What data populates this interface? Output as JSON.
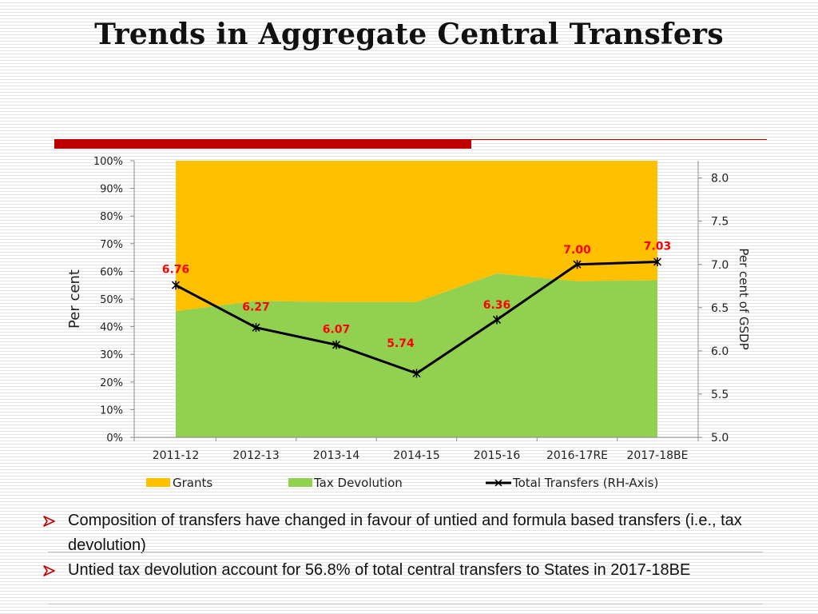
{
  "slide": {
    "title": "Trends in Aggregate Central Transfers",
    "accent_color": "#c00000",
    "bullets": [
      "Composition of transfers have changed in favour of untied and formula based transfers (i.e., tax devolution)",
      "Untied tax devolution account for 56.8% of total central transfers to States in 2017-18BE"
    ],
    "bullet_icon": "arrow-bullet-icon"
  },
  "chart_data": {
    "type": "area",
    "title": "",
    "ylabel": "Per cent",
    "y2label": "Per cent of GSDP",
    "categories": [
      "2011-12",
      "2012-13",
      "2013-14",
      "2014-15",
      "2015-16",
      "2016-17RE",
      "2017-18BE"
    ],
    "ylim": [
      0,
      100
    ],
    "yticks": [
      "0%",
      "10%",
      "20%",
      "30%",
      "40%",
      "50%",
      "60%",
      "70%",
      "80%",
      "90%",
      "100%"
    ],
    "y2lim": [
      5.0,
      8.2
    ],
    "y2ticks": [
      "5.0",
      "5.5",
      "6.0",
      "6.5",
      "7.0",
      "7.5",
      "8.0"
    ],
    "series": [
      {
        "name": "Grants",
        "type": "stacked-area",
        "color": "#ffc000",
        "values": [
          54.4,
          50.7,
          51.1,
          51.1,
          40.8,
          43.6,
          43.2
        ]
      },
      {
        "name": "Tax Devolution",
        "type": "stacked-area",
        "color": "#92d050",
        "values": [
          45.6,
          49.3,
          48.9,
          48.9,
          59.2,
          56.4,
          56.8
        ]
      },
      {
        "name": "Total Transfers (RH-Axis)",
        "type": "line",
        "axis": "right",
        "color": "#000000",
        "values": [
          6.76,
          6.27,
          6.07,
          5.74,
          6.36,
          7.0,
          7.03
        ],
        "labels": [
          "6.76",
          "6.27",
          "6.07",
          "5.74",
          "6.36",
          "7.00",
          "7.03"
        ],
        "label_color": "#ff0000"
      }
    ],
    "legend": [
      "Grants",
      "Tax Devolution",
      "Total Transfers (RH-Axis)"
    ],
    "legend_position": "bottom",
    "grid": false
  }
}
